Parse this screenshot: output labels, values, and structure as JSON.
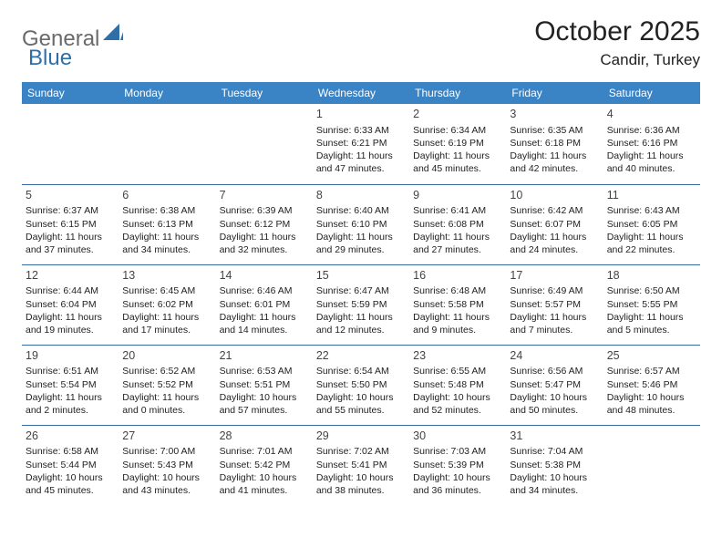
{
  "logo": {
    "general": "General",
    "blue": "Blue",
    "shape_color": "#2f6fa8"
  },
  "title": "October 2025",
  "location": "Candir, Turkey",
  "colors": {
    "header_bg": "#3a83c4",
    "header_fg": "#ffffff",
    "rule": "#3a6ea5",
    "text": "#222222",
    "logo_gray": "#6a6a6a",
    "logo_blue": "#2f6fa8",
    "page_bg": "#ffffff"
  },
  "dayNames": [
    "Sunday",
    "Monday",
    "Tuesday",
    "Wednesday",
    "Thursday",
    "Friday",
    "Saturday"
  ],
  "weeks": [
    [
      null,
      null,
      null,
      {
        "n": "1",
        "sunrise": "6:33 AM",
        "sunset": "6:21 PM",
        "dayH": "11",
        "dayM": "47"
      },
      {
        "n": "2",
        "sunrise": "6:34 AM",
        "sunset": "6:19 PM",
        "dayH": "11",
        "dayM": "45"
      },
      {
        "n": "3",
        "sunrise": "6:35 AM",
        "sunset": "6:18 PM",
        "dayH": "11",
        "dayM": "42"
      },
      {
        "n": "4",
        "sunrise": "6:36 AM",
        "sunset": "6:16 PM",
        "dayH": "11",
        "dayM": "40"
      }
    ],
    [
      {
        "n": "5",
        "sunrise": "6:37 AM",
        "sunset": "6:15 PM",
        "dayH": "11",
        "dayM": "37"
      },
      {
        "n": "6",
        "sunrise": "6:38 AM",
        "sunset": "6:13 PM",
        "dayH": "11",
        "dayM": "34"
      },
      {
        "n": "7",
        "sunrise": "6:39 AM",
        "sunset": "6:12 PM",
        "dayH": "11",
        "dayM": "32"
      },
      {
        "n": "8",
        "sunrise": "6:40 AM",
        "sunset": "6:10 PM",
        "dayH": "11",
        "dayM": "29"
      },
      {
        "n": "9",
        "sunrise": "6:41 AM",
        "sunset": "6:08 PM",
        "dayH": "11",
        "dayM": "27"
      },
      {
        "n": "10",
        "sunrise": "6:42 AM",
        "sunset": "6:07 PM",
        "dayH": "11",
        "dayM": "24"
      },
      {
        "n": "11",
        "sunrise": "6:43 AM",
        "sunset": "6:05 PM",
        "dayH": "11",
        "dayM": "22"
      }
    ],
    [
      {
        "n": "12",
        "sunrise": "6:44 AM",
        "sunset": "6:04 PM",
        "dayH": "11",
        "dayM": "19"
      },
      {
        "n": "13",
        "sunrise": "6:45 AM",
        "sunset": "6:02 PM",
        "dayH": "11",
        "dayM": "17"
      },
      {
        "n": "14",
        "sunrise": "6:46 AM",
        "sunset": "6:01 PM",
        "dayH": "11",
        "dayM": "14"
      },
      {
        "n": "15",
        "sunrise": "6:47 AM",
        "sunset": "5:59 PM",
        "dayH": "11",
        "dayM": "12"
      },
      {
        "n": "16",
        "sunrise": "6:48 AM",
        "sunset": "5:58 PM",
        "dayH": "11",
        "dayM": "9"
      },
      {
        "n": "17",
        "sunrise": "6:49 AM",
        "sunset": "5:57 PM",
        "dayH": "11",
        "dayM": "7"
      },
      {
        "n": "18",
        "sunrise": "6:50 AM",
        "sunset": "5:55 PM",
        "dayH": "11",
        "dayM": "5"
      }
    ],
    [
      {
        "n": "19",
        "sunrise": "6:51 AM",
        "sunset": "5:54 PM",
        "dayH": "11",
        "dayM": "2"
      },
      {
        "n": "20",
        "sunrise": "6:52 AM",
        "sunset": "5:52 PM",
        "dayH": "11",
        "dayM": "0"
      },
      {
        "n": "21",
        "sunrise": "6:53 AM",
        "sunset": "5:51 PM",
        "dayH": "10",
        "dayM": "57"
      },
      {
        "n": "22",
        "sunrise": "6:54 AM",
        "sunset": "5:50 PM",
        "dayH": "10",
        "dayM": "55"
      },
      {
        "n": "23",
        "sunrise": "6:55 AM",
        "sunset": "5:48 PM",
        "dayH": "10",
        "dayM": "52"
      },
      {
        "n": "24",
        "sunrise": "6:56 AM",
        "sunset": "5:47 PM",
        "dayH": "10",
        "dayM": "50"
      },
      {
        "n": "25",
        "sunrise": "6:57 AM",
        "sunset": "5:46 PM",
        "dayH": "10",
        "dayM": "48"
      }
    ],
    [
      {
        "n": "26",
        "sunrise": "6:58 AM",
        "sunset": "5:44 PM",
        "dayH": "10",
        "dayM": "45"
      },
      {
        "n": "27",
        "sunrise": "7:00 AM",
        "sunset": "5:43 PM",
        "dayH": "10",
        "dayM": "43"
      },
      {
        "n": "28",
        "sunrise": "7:01 AM",
        "sunset": "5:42 PM",
        "dayH": "10",
        "dayM": "41"
      },
      {
        "n": "29",
        "sunrise": "7:02 AM",
        "sunset": "5:41 PM",
        "dayH": "10",
        "dayM": "38"
      },
      {
        "n": "30",
        "sunrise": "7:03 AM",
        "sunset": "5:39 PM",
        "dayH": "10",
        "dayM": "36"
      },
      {
        "n": "31",
        "sunrise": "7:04 AM",
        "sunset": "5:38 PM",
        "dayH": "10",
        "dayM": "34"
      },
      null
    ]
  ]
}
